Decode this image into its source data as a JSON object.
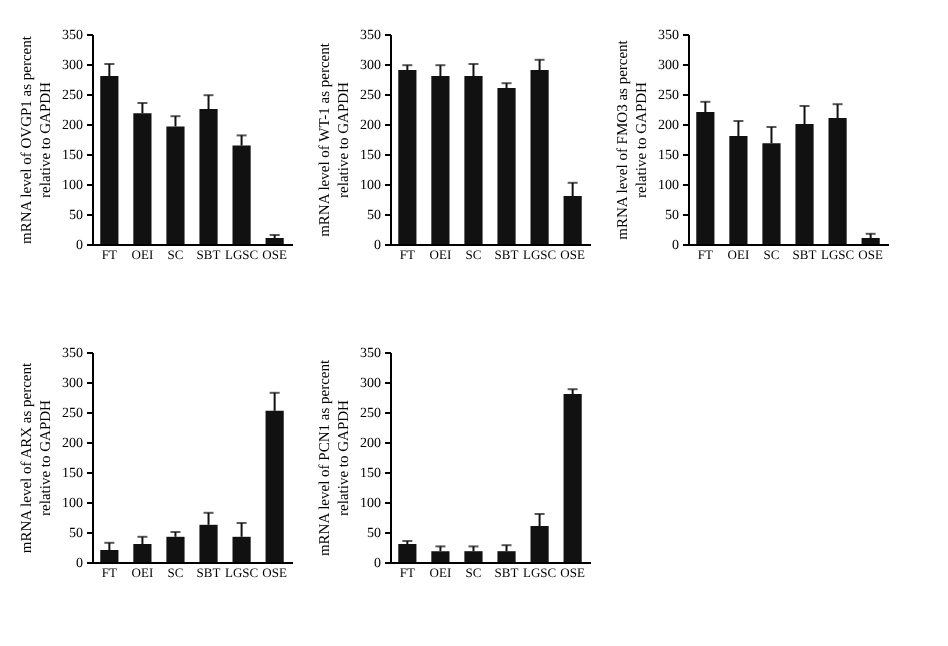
{
  "chart_data": [
    {
      "type": "bar",
      "ylabel": "mRNA level of OVGP1 as percent\nrelative to GAPDH",
      "categories": [
        "FT",
        "OEI",
        "SC",
        "SBT",
        "LGSC",
        "OSE"
      ],
      "values": [
        280,
        218,
        196,
        225,
        164,
        10
      ],
      "errors": [
        [
          280,
          300
        ],
        [
          218,
          235
        ],
        [
          196,
          213
        ],
        [
          225,
          248
        ],
        [
          164,
          181
        ],
        [
          10,
          15
        ]
      ],
      "color": "#111111",
      "ylim": [
        0,
        350
      ],
      "yticks": [
        0,
        50,
        100,
        150,
        200,
        250,
        300,
        350
      ],
      "grid": false
    },
    {
      "type": "bar",
      "ylabel": "mRNA level of WT-1 as percent\nrelative to GAPDH",
      "categories": [
        "FT",
        "OEI",
        "SC",
        "SBT",
        "LGSC",
        "OSE"
      ],
      "values": [
        290,
        280,
        280,
        260,
        290,
        80
      ],
      "errors": [
        [
          290,
          298
        ],
        [
          280,
          298
        ],
        [
          280,
          300
        ],
        [
          260,
          268
        ],
        [
          290,
          307
        ],
        [
          80,
          102
        ]
      ],
      "color": "#111111",
      "ylim": [
        0,
        350
      ],
      "yticks": [
        0,
        50,
        100,
        150,
        200,
        250,
        300,
        350
      ],
      "grid": false
    },
    {
      "type": "bar",
      "ylabel": "mRNA level of FMO3 as percent\nrelative to GAPDH",
      "categories": [
        "FT",
        "OEI",
        "SC",
        "SBT",
        "LGSC",
        "OSE"
      ],
      "values": [
        220,
        180,
        168,
        200,
        210,
        10
      ],
      "errors": [
        [
          220,
          237
        ],
        [
          180,
          205
        ],
        [
          168,
          195
        ],
        [
          200,
          230
        ],
        [
          210,
          233
        ],
        [
          10,
          17
        ]
      ],
      "color": "#111111",
      "ylim": [
        0,
        350
      ],
      "yticks": [
        0,
        50,
        100,
        150,
        200,
        250,
        300,
        350
      ],
      "grid": false
    },
    {
      "type": "bar",
      "ylabel": "mRNA level of ARX as percent\nrelative to GAPDH",
      "categories": [
        "FT",
        "OEI",
        "SC",
        "SBT",
        "LGSC",
        "OSE"
      ],
      "values": [
        20,
        30,
        42,
        62,
        42,
        252
      ],
      "errors": [
        [
          20,
          32
        ],
        [
          30,
          42
        ],
        [
          42,
          50
        ],
        [
          62,
          82
        ],
        [
          42,
          65
        ],
        [
          252,
          282
        ]
      ],
      "color": "#111111",
      "ylim": [
        0,
        350
      ],
      "yticks": [
        0,
        50,
        100,
        150,
        200,
        250,
        300,
        350
      ],
      "grid": false
    },
    {
      "type": "bar",
      "ylabel": "mRNA level of PCN1 as percent\nrelative to GAPDH",
      "categories": [
        "FT",
        "OEI",
        "SC",
        "SBT",
        "LGSC",
        "OSE"
      ],
      "values": [
        30,
        18,
        18,
        18,
        60,
        280
      ],
      "errors": [
        [
          30,
          35
        ],
        [
          18,
          26
        ],
        [
          18,
          26
        ],
        [
          18,
          28
        ],
        [
          60,
          80
        ],
        [
          280,
          288
        ]
      ],
      "color": "#111111",
      "ylim": [
        0,
        350
      ],
      "yticks": [
        0,
        50,
        100,
        150,
        200,
        250,
        300,
        350
      ],
      "grid": false
    }
  ]
}
